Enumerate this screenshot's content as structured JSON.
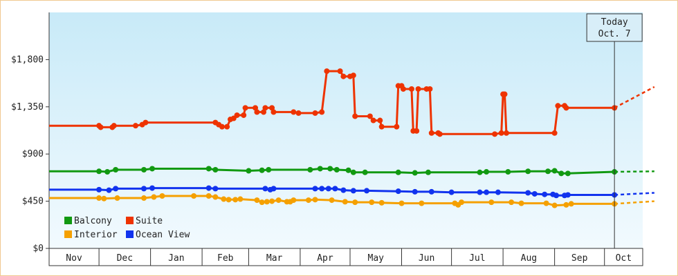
{
  "chart_data": {
    "type": "line",
    "title": "",
    "xlabel": "",
    "ylabel": "",
    "ylim": [
      0,
      2250
    ],
    "y_ticks": [
      {
        "value": 0,
        "label": "$0"
      },
      {
        "value": 450,
        "label": "$450"
      },
      {
        "value": 900,
        "label": "$900"
      },
      {
        "value": 1350,
        "label": "$1,350"
      },
      {
        "value": 1800,
        "label": "$1,800"
      }
    ],
    "x_months": [
      "Nov",
      "Dec",
      "Jan",
      "Feb",
      "Mar",
      "Apr",
      "May",
      "Jun",
      "Jul",
      "Aug",
      "Sep",
      "Oct"
    ],
    "x_range_days": [
      0,
      357
    ],
    "month_starts": [
      0,
      30,
      61,
      92,
      120,
      151,
      181,
      212,
      242,
      273,
      304,
      334
    ],
    "today": {
      "line1": "Today",
      "line2": "Oct. 7",
      "day": 340
    },
    "projection_end_day": 364,
    "colors": {
      "Balcony": "#119911",
      "Suite": "#ee3300",
      "Interior": "#f5a000",
      "Ocean View": "#1133ee",
      "plot_bg_top": "#c8eaf8",
      "plot_bg_bottom": "#f2fafe"
    },
    "legend": {
      "position": "bottom-left",
      "items": [
        {
          "name": "Balcony",
          "color": "#119911"
        },
        {
          "name": "Suite",
          "color": "#ee3300"
        },
        {
          "name": "Interior",
          "color": "#f5a000"
        },
        {
          "name": "Ocean View",
          "color": "#1133ee"
        }
      ]
    },
    "series": [
      {
        "name": "Suite",
        "color": "#ee3300",
        "projection_end": 1540,
        "points": [
          [
            0,
            1170
          ],
          [
            30,
            1170
          ],
          [
            31,
            1155
          ],
          [
            38,
            1155
          ],
          [
            39,
            1170
          ],
          [
            52,
            1170
          ],
          [
            56,
            1180
          ],
          [
            58,
            1200
          ],
          [
            100,
            1200
          ],
          [
            102,
            1180
          ],
          [
            104,
            1160
          ],
          [
            107,
            1160
          ],
          [
            109,
            1230
          ],
          [
            111,
            1240
          ],
          [
            113,
            1270
          ],
          [
            117,
            1270
          ],
          [
            118,
            1340
          ],
          [
            124,
            1340
          ],
          [
            125,
            1300
          ],
          [
            129,
            1300
          ],
          [
            130,
            1340
          ],
          [
            134,
            1340
          ],
          [
            135,
            1300
          ],
          [
            147,
            1300
          ],
          [
            150,
            1290
          ],
          [
            160,
            1290
          ],
          [
            164,
            1300
          ],
          [
            167,
            1690
          ],
          [
            175,
            1690
          ],
          [
            177,
            1640
          ],
          [
            181,
            1640
          ],
          [
            183,
            1650
          ],
          [
            184,
            1260
          ],
          [
            193,
            1260
          ],
          [
            195,
            1220
          ],
          [
            199,
            1220
          ],
          [
            200,
            1160
          ],
          [
            209,
            1160
          ],
          [
            210,
            1550
          ],
          [
            212,
            1550
          ],
          [
            213,
            1520
          ],
          [
            218,
            1520
          ],
          [
            219,
            1120
          ],
          [
            221,
            1120
          ],
          [
            222,
            1520
          ],
          [
            227,
            1520
          ],
          [
            229,
            1520
          ],
          [
            230,
            1100
          ],
          [
            234,
            1100
          ],
          [
            235,
            1090
          ],
          [
            268,
            1090
          ],
          [
            272,
            1100
          ],
          [
            273,
            1470
          ],
          [
            274,
            1470
          ],
          [
            275,
            1100
          ],
          [
            304,
            1100
          ],
          [
            306,
            1360
          ],
          [
            310,
            1360
          ],
          [
            311,
            1340
          ],
          [
            340,
            1340
          ]
        ]
      },
      {
        "name": "Balcony",
        "color": "#119911",
        "projection_end": 735,
        "points": [
          [
            0,
            735
          ],
          [
            30,
            735
          ],
          [
            35,
            730
          ],
          [
            40,
            750
          ],
          [
            57,
            750
          ],
          [
            62,
            760
          ],
          [
            96,
            760
          ],
          [
            100,
            750
          ],
          [
            120,
            740
          ],
          [
            128,
            745
          ],
          [
            132,
            750
          ],
          [
            157,
            750
          ],
          [
            163,
            760
          ],
          [
            169,
            760
          ],
          [
            173,
            750
          ],
          [
            180,
            745
          ],
          [
            183,
            725
          ],
          [
            190,
            725
          ],
          [
            210,
            725
          ],
          [
            220,
            720
          ],
          [
            228,
            725
          ],
          [
            259,
            725
          ],
          [
            263,
            730
          ],
          [
            276,
            730
          ],
          [
            288,
            735
          ],
          [
            300,
            735
          ],
          [
            304,
            740
          ],
          [
            308,
            715
          ],
          [
            312,
            715
          ],
          [
            340,
            730
          ]
        ]
      },
      {
        "name": "Ocean View",
        "color": "#1133ee",
        "projection_end": 530,
        "points": [
          [
            0,
            560
          ],
          [
            30,
            560
          ],
          [
            36,
            555
          ],
          [
            40,
            570
          ],
          [
            57,
            570
          ],
          [
            62,
            575
          ],
          [
            96,
            575
          ],
          [
            100,
            570
          ],
          [
            130,
            570
          ],
          [
            133,
            560
          ],
          [
            135,
            570
          ],
          [
            160,
            570
          ],
          [
            164,
            570
          ],
          [
            168,
            570
          ],
          [
            172,
            570
          ],
          [
            177,
            555
          ],
          [
            183,
            550
          ],
          [
            191,
            550
          ],
          [
            210,
            545
          ],
          [
            220,
            540
          ],
          [
            230,
            540
          ],
          [
            242,
            535
          ],
          [
            259,
            535
          ],
          [
            263,
            535
          ],
          [
            270,
            535
          ],
          [
            288,
            530
          ],
          [
            292,
            520
          ],
          [
            298,
            515
          ],
          [
            303,
            515
          ],
          [
            305,
            505
          ],
          [
            310,
            505
          ],
          [
            312,
            510
          ],
          [
            340,
            510
          ]
        ]
      },
      {
        "name": "Interior",
        "color": "#f5a000",
        "projection_end": 450,
        "points": [
          [
            0,
            480
          ],
          [
            30,
            480
          ],
          [
            33,
            475
          ],
          [
            41,
            480
          ],
          [
            57,
            480
          ],
          [
            63,
            490
          ],
          [
            68,
            500
          ],
          [
            87,
            500
          ],
          [
            96,
            500
          ],
          [
            100,
            490
          ],
          [
            105,
            470
          ],
          [
            108,
            465
          ],
          [
            112,
            465
          ],
          [
            115,
            470
          ],
          [
            125,
            460
          ],
          [
            128,
            440
          ],
          [
            131,
            445
          ],
          [
            134,
            450
          ],
          [
            138,
            460
          ],
          [
            143,
            445
          ],
          [
            145,
            445
          ],
          [
            147,
            460
          ],
          [
            156,
            460
          ],
          [
            160,
            465
          ],
          [
            170,
            460
          ],
          [
            178,
            445
          ],
          [
            184,
            440
          ],
          [
            194,
            440
          ],
          [
            200,
            435
          ],
          [
            212,
            430
          ],
          [
            224,
            430
          ],
          [
            244,
            430
          ],
          [
            246,
            415
          ],
          [
            248,
            440
          ],
          [
            266,
            440
          ],
          [
            278,
            440
          ],
          [
            284,
            430
          ],
          [
            299,
            430
          ],
          [
            304,
            410
          ],
          [
            311,
            415
          ],
          [
            314,
            425
          ],
          [
            340,
            425
          ]
        ]
      }
    ]
  }
}
